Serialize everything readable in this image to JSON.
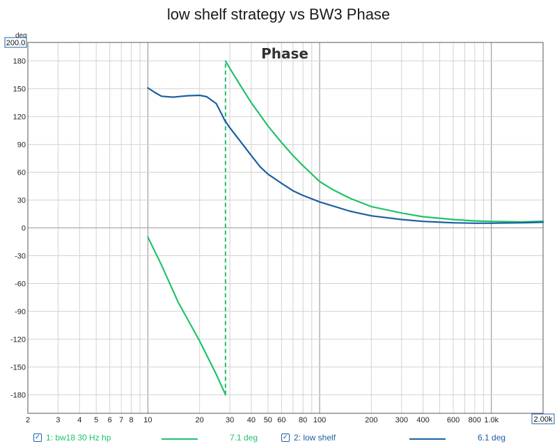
{
  "title": "low shelf strategy vs BW3 Phase",
  "chart_data": {
    "type": "line",
    "title": "low shelf strategy vs BW3 Phase",
    "inner_title": "Phase",
    "y_unit": "deg",
    "y_top_label": "200.0",
    "x_right_label": "2.00k",
    "x_scale": "log",
    "xlim": [
      2,
      2000
    ],
    "ylim": [
      -200,
      200
    ],
    "grid": true,
    "y_ticks": [
      180,
      150,
      120,
      90,
      60,
      30,
      0,
      -30,
      -60,
      -90,
      -120,
      -150,
      -180
    ],
    "x_ticks": [
      {
        "v": 2,
        "label": "2"
      },
      {
        "v": 3,
        "label": "3"
      },
      {
        "v": 4,
        "label": "4"
      },
      {
        "v": 5,
        "label": "5"
      },
      {
        "v": 6,
        "label": "6"
      },
      {
        "v": 7,
        "label": "7"
      },
      {
        "v": 8,
        "label": "8"
      },
      {
        "v": 10,
        "label": "10"
      },
      {
        "v": 20,
        "label": "20"
      },
      {
        "v": 30,
        "label": "30"
      },
      {
        "v": 40,
        "label": "40"
      },
      {
        "v": 50,
        "label": "50"
      },
      {
        "v": 60,
        "label": "60"
      },
      {
        "v": 80,
        "label": "80"
      },
      {
        "v": 100,
        "label": "100"
      },
      {
        "v": 200,
        "label": "200"
      },
      {
        "v": 300,
        "label": "300"
      },
      {
        "v": 400,
        "label": "400"
      },
      {
        "v": 600,
        "label": "600"
      },
      {
        "v": 800,
        "label": "800"
      },
      {
        "v": 1000,
        "label": "1.0k"
      }
    ],
    "series": [
      {
        "name": "1: bw18 30 Hz hp",
        "color": "#1fc26a",
        "value_label": "7.1 deg",
        "segments": [
          [
            [
              10,
              -10
            ],
            [
              12,
              -40
            ],
            [
              15,
              -80
            ],
            [
              20,
              -122
            ],
            [
              25,
              -158
            ],
            [
              28.3,
              -180
            ]
          ],
          [
            [
              28.3,
              180
            ],
            [
              30,
              172
            ],
            [
              35,
              152
            ],
            [
              40,
              135
            ],
            [
              50,
              110
            ],
            [
              60,
              92
            ],
            [
              70,
              78
            ],
            [
              80,
              67
            ],
            [
              100,
              50
            ],
            [
              120,
              41
            ],
            [
              150,
              32
            ],
            [
              200,
              23
            ],
            [
              300,
              16
            ],
            [
              400,
              12
            ],
            [
              600,
              9
            ],
            [
              800,
              7.5
            ],
            [
              1000,
              7
            ],
            [
              1500,
              6.5
            ],
            [
              2000,
              7.1
            ]
          ]
        ],
        "wrap_x": 28.3,
        "wrap_from": -180,
        "wrap_to": 180
      },
      {
        "name": "2: low shelf",
        "color": "#1a5fa0",
        "value_label": "6.1 deg",
        "segments": [
          [
            [
              10,
              151
            ],
            [
              11,
              146
            ],
            [
              12,
              142
            ],
            [
              14,
              141
            ],
            [
              17,
              142.5
            ],
            [
              20,
              143
            ],
            [
              22,
              141.5
            ],
            [
              25,
              134
            ],
            [
              27,
              122
            ],
            [
              28,
              116
            ],
            [
              30,
              108
            ],
            [
              35,
              92
            ],
            [
              40,
              78
            ],
            [
              45,
              66
            ],
            [
              50,
              58
            ],
            [
              60,
              48
            ],
            [
              70,
              40
            ],
            [
              80,
              35
            ],
            [
              100,
              28
            ],
            [
              150,
              18
            ],
            [
              200,
              13
            ],
            [
              300,
              9
            ],
            [
              400,
              7
            ],
            [
              600,
              5.5
            ],
            [
              800,
              5
            ],
            [
              1000,
              5
            ],
            [
              1500,
              5.5
            ],
            [
              2000,
              6.1
            ]
          ]
        ]
      }
    ]
  }
}
